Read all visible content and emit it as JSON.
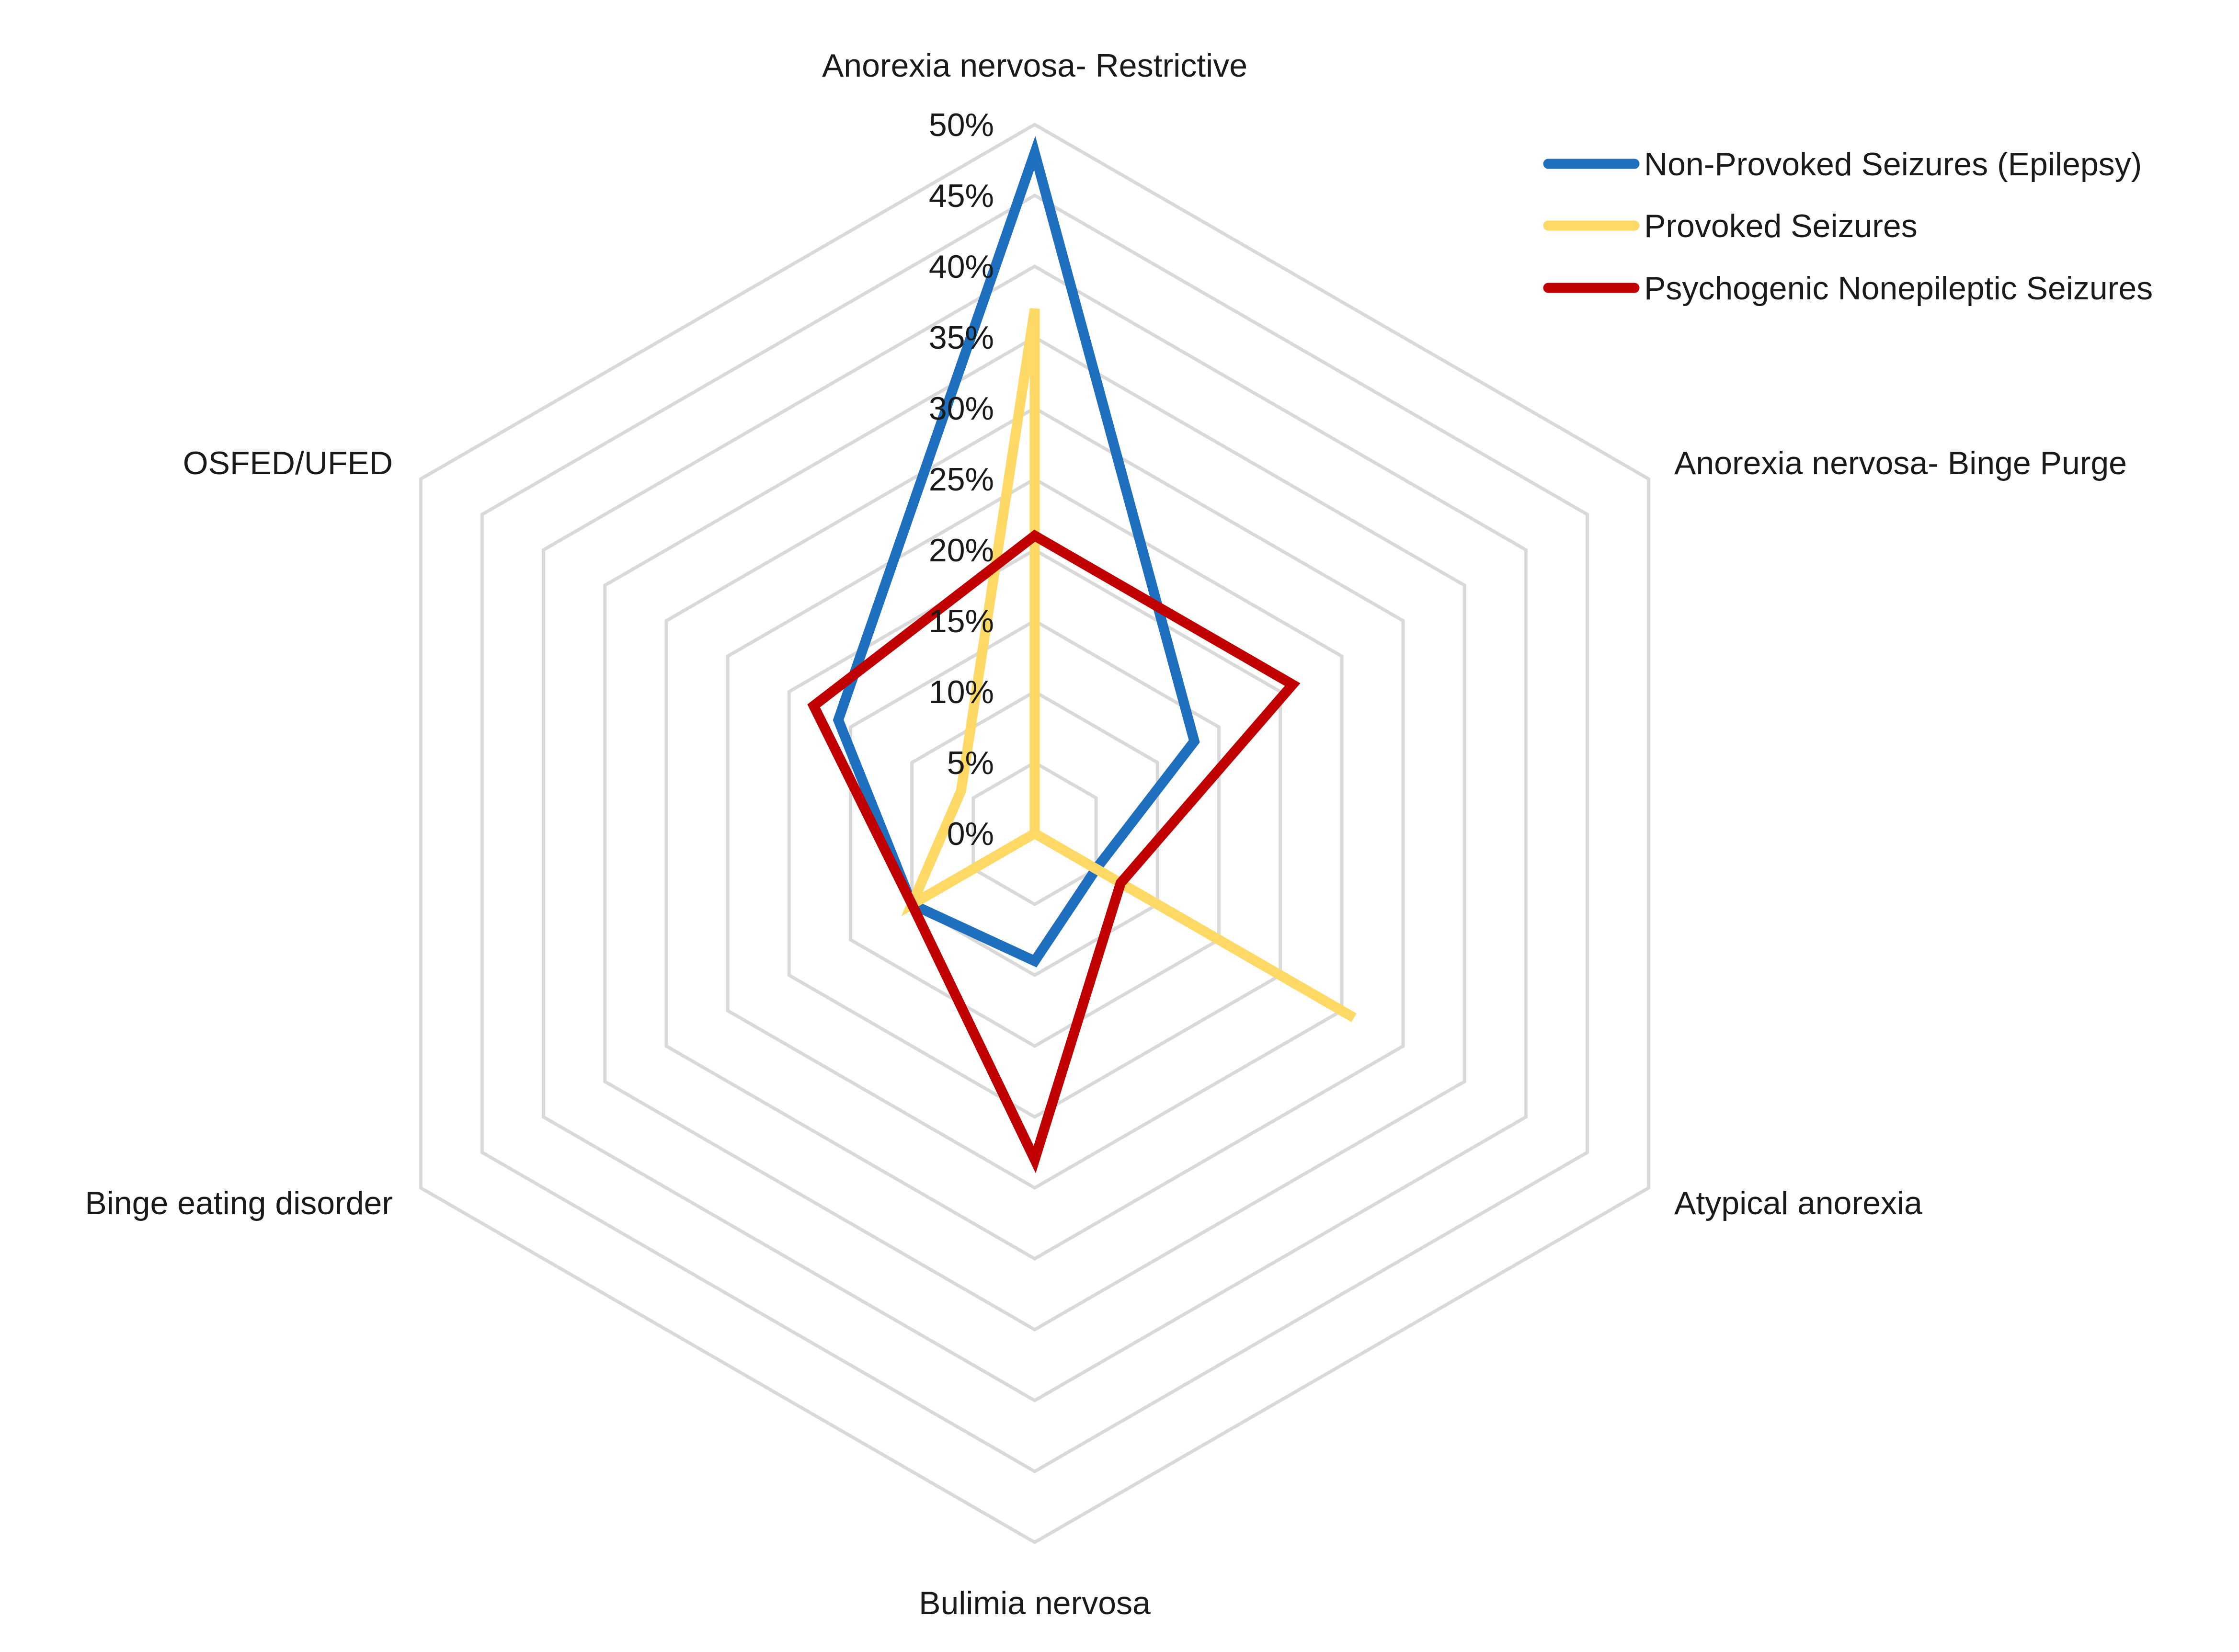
{
  "chart_data": {
    "type": "radar",
    "categories": [
      "Anorexia nervosa- Restrictive",
      "Anorexia nervosa- Binge Purge",
      "Atypical anorexia",
      "Bulimia nervosa",
      "Binge eating disorder",
      "OSFED/UFED"
    ],
    "axis": {
      "min": 0,
      "max": 0.5,
      "ticks": [
        0,
        0.05,
        0.1,
        0.15,
        0.2,
        0.25,
        0.3,
        0.35,
        0.4,
        0.45,
        0.5
      ],
      "tick_labels": [
        "0%",
        "5%",
        "10%",
        "15%",
        "20%",
        "25%",
        "30%",
        "35%",
        "40%",
        "45%",
        "50%"
      ]
    },
    "grid": true,
    "legend_position": "top-right",
    "series": [
      {
        "name": "Non-Provoked Seizures (Epilepsy)",
        "color": "#1f6fbf",
        "values": [
          0.48,
          0.13,
          0.05,
          0.09,
          0.1,
          0.16
        ]
      },
      {
        "name": "Provoked Seizures",
        "color": "#ffd966",
        "values": [
          0.37,
          0.0,
          0.26,
          0.0,
          0.1,
          0.06
        ]
      },
      {
        "name": "Psychogenic Nonepileptic Seizures",
        "color": "#c00000",
        "values": [
          0.21,
          0.21,
          0.07,
          0.23,
          0.1,
          0.18
        ]
      }
    ]
  }
}
